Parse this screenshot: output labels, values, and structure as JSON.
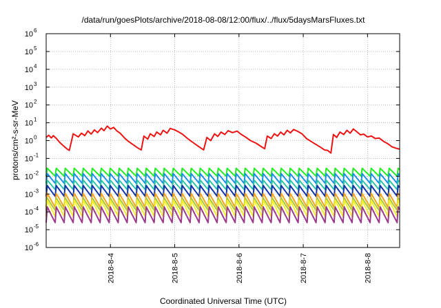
{
  "chart_data": {
    "type": "line",
    "title": "/data/run/goesPlots/archive/2018-08-08/12:00/flux/../flux/5daysMarsFluxes.txt",
    "xlabel": "Coordinated Universal Time (UTC)",
    "ylabel": "protons/cm²-s-sr-MeV",
    "y_scale": "log",
    "ylim": [
      1e-06,
      1000000.0
    ],
    "y_ticks": [
      {
        "base": "10",
        "exp": "6"
      },
      {
        "base": "10",
        "exp": "5"
      },
      {
        "base": "10",
        "exp": "4"
      },
      {
        "base": "10",
        "exp": "3"
      },
      {
        "base": "10",
        "exp": "2"
      },
      {
        "base": "10",
        "exp": "1"
      },
      {
        "base": "10",
        "exp": "0"
      },
      {
        "base": "10",
        "exp": "-1"
      },
      {
        "base": "10",
        "exp": "-2"
      },
      {
        "base": "10",
        "exp": "-3"
      },
      {
        "base": "10",
        "exp": "-4"
      },
      {
        "base": "10",
        "exp": "-5"
      },
      {
        "base": "10",
        "exp": "-6"
      }
    ],
    "xlim": [
      "2018-08-03T00:00",
      "2018-08-08T12:00"
    ],
    "x_ticks": [
      "2018-8-4",
      "2018-8-5",
      "2018-8-6",
      "2018-8-7",
      "2018-8-8"
    ],
    "grid": true,
    "series": [
      {
        "color": "#ee1111",
        "values": [
          [
            0.0,
            1.5
          ],
          [
            0.04,
            2.0
          ],
          [
            0.08,
            1.4
          ],
          [
            0.11,
            1.9
          ],
          [
            0.16,
            1.3
          ],
          [
            0.21,
            0.8
          ],
          [
            0.27,
            0.5
          ],
          [
            0.32,
            0.35
          ],
          [
            0.36,
            0.28
          ],
          [
            0.42,
            2.4
          ],
          [
            0.5,
            1.6
          ],
          [
            0.55,
            2.6
          ],
          [
            0.6,
            1.9
          ],
          [
            0.65,
            3.5
          ],
          [
            0.7,
            2.3
          ],
          [
            0.75,
            4.0
          ],
          [
            0.8,
            2.8
          ],
          [
            0.86,
            5.0
          ],
          [
            0.9,
            3.6
          ],
          [
            0.95,
            6.5
          ],
          [
            1.0,
            4.5
          ],
          [
            1.05,
            5.5
          ],
          [
            1.1,
            3.5
          ],
          [
            1.15,
            2.6
          ],
          [
            1.22,
            1.4
          ],
          [
            1.28,
            0.9
          ],
          [
            1.35,
            0.6
          ],
          [
            1.42,
            0.4
          ],
          [
            1.48,
            0.3
          ],
          [
            1.52,
            1.8
          ],
          [
            1.58,
            1.2
          ],
          [
            1.62,
            2.4
          ],
          [
            1.68,
            1.7
          ],
          [
            1.72,
            3.0
          ],
          [
            1.78,
            2.1
          ],
          [
            1.82,
            3.8
          ],
          [
            1.88,
            2.6
          ],
          [
            1.93,
            4.8
          ],
          [
            2.0,
            4.0
          ],
          [
            2.06,
            3.1
          ],
          [
            2.12,
            2.3
          ],
          [
            2.2,
            1.3
          ],
          [
            2.28,
            0.8
          ],
          [
            2.36,
            0.5
          ],
          [
            2.45,
            0.3
          ],
          [
            2.5,
            1.5
          ],
          [
            2.56,
            1.0
          ],
          [
            2.62,
            2.4
          ],
          [
            2.67,
            1.7
          ],
          [
            2.72,
            3.0
          ],
          [
            2.78,
            2.2
          ],
          [
            2.83,
            3.6
          ],
          [
            2.9,
            2.8
          ],
          [
            2.97,
            3.4
          ],
          [
            3.03,
            2.3
          ],
          [
            3.1,
            1.6
          ],
          [
            3.18,
            1.0
          ],
          [
            3.27,
            0.7
          ],
          [
            3.35,
            0.45
          ],
          [
            3.4,
            0.35
          ],
          [
            3.44,
            1.8
          ],
          [
            3.5,
            1.3
          ],
          [
            3.55,
            2.4
          ],
          [
            3.6,
            1.8
          ],
          [
            3.65,
            3.0
          ],
          [
            3.7,
            2.1
          ],
          [
            3.75,
            3.8
          ],
          [
            3.8,
            2.7
          ],
          [
            3.85,
            4.2
          ],
          [
            3.92,
            3.2
          ],
          [
            3.98,
            2.4
          ],
          [
            4.05,
            1.3
          ],
          [
            4.12,
            0.9
          ],
          [
            4.2,
            0.6
          ],
          [
            4.28,
            0.4
          ],
          [
            4.33,
            0.3
          ],
          [
            4.38,
            0.28
          ],
          [
            4.43,
            0.2
          ],
          [
            4.47,
            2.2
          ],
          [
            4.52,
            1.5
          ],
          [
            4.57,
            3.0
          ],
          [
            4.63,
            2.2
          ],
          [
            4.68,
            3.8
          ],
          [
            4.73,
            2.6
          ],
          [
            4.78,
            4.5
          ],
          [
            4.83,
            3.2
          ],
          [
            4.89,
            2.1
          ],
          [
            4.94,
            2.3
          ],
          [
            5.0,
            1.6
          ],
          [
            5.06,
            1.8
          ],
          [
            5.12,
            1.3
          ],
          [
            5.18,
            1.4
          ],
          [
            5.25,
            0.9
          ],
          [
            5.32,
            0.65
          ],
          [
            5.38,
            0.45
          ],
          [
            5.44,
            0.38
          ],
          [
            5.5,
            0.33
          ]
        ]
      },
      {
        "color": "#22ee22",
        "shape": "sawtooth",
        "low": 0.01,
        "high": 0.028,
        "period_days": 0.14
      },
      {
        "color": "#1a8fe8",
        "shape": "sawtooth",
        "low": 0.004,
        "high": 0.014,
        "period_days": 0.14
      },
      {
        "color": "#2ec4a6",
        "shape": "sawtooth",
        "low": 0.0018,
        "high": 0.006,
        "period_days": 0.14
      },
      {
        "color": "#1133aa",
        "shape": "sawtooth",
        "low": 0.00075,
        "high": 0.003,
        "period_days": 0.14
      },
      {
        "color": "#f2a31a",
        "shape": "sawtooth",
        "low": 0.00018,
        "high": 0.0011,
        "period_days": 0.14
      },
      {
        "color": "#a6c83a",
        "shape": "sawtooth",
        "low": 0.00012,
        "high": 0.0006,
        "period_days": 0.14
      },
      {
        "color": "#f4f02a",
        "shape": "sawtooth",
        "low": 5.5e-05,
        "high": 0.00045,
        "period_days": 0.14
      },
      {
        "color": "#9b3a8a",
        "shape": "sawtooth",
        "low": 2.5e-05,
        "high": 0.00019,
        "period_days": 0.14
      }
    ]
  }
}
